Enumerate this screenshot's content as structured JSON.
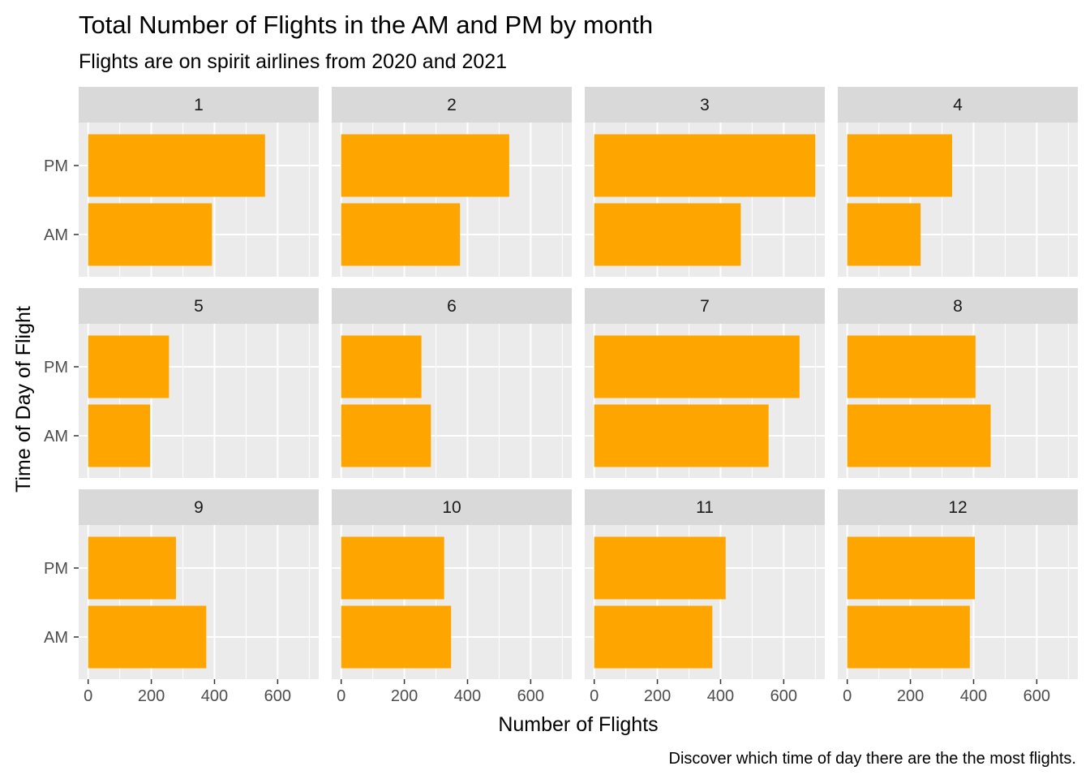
{
  "chart_data": {
    "type": "bar",
    "orientation": "horizontal",
    "facet": "month",
    "title": "Total Number of Flights in the AM and PM by month",
    "subtitle": "Flights are on spirit airlines from 2020 and 2021",
    "caption": "Discover which time of day there are the the most flights.",
    "xlabel": "Number of Flights",
    "ylabel": "Time of Day of Flight",
    "categories": [
      "AM",
      "PM"
    ],
    "x_ticks": [
      0,
      200,
      400,
      600
    ],
    "xlim": [
      -30,
      730
    ],
    "bar_color": "#FFA500",
    "grid": true,
    "panels": [
      {
        "label": "1",
        "AM": 392,
        "PM": 560
      },
      {
        "label": "2",
        "AM": 376,
        "PM": 532
      },
      {
        "label": "3",
        "AM": 464,
        "PM": 700
      },
      {
        "label": "4",
        "AM": 232,
        "PM": 332
      },
      {
        "label": "5",
        "AM": 196,
        "PM": 256
      },
      {
        "label": "6",
        "AM": 284,
        "PM": 254
      },
      {
        "label": "7",
        "AM": 552,
        "PM": 650
      },
      {
        "label": "8",
        "AM": 454,
        "PM": 406
      },
      {
        "label": "9",
        "AM": 374,
        "PM": 278
      },
      {
        "label": "10",
        "AM": 348,
        "PM": 326
      },
      {
        "label": "11",
        "AM": 374,
        "PM": 416
      },
      {
        "label": "12",
        "AM": 388,
        "PM": 404
      }
    ]
  }
}
